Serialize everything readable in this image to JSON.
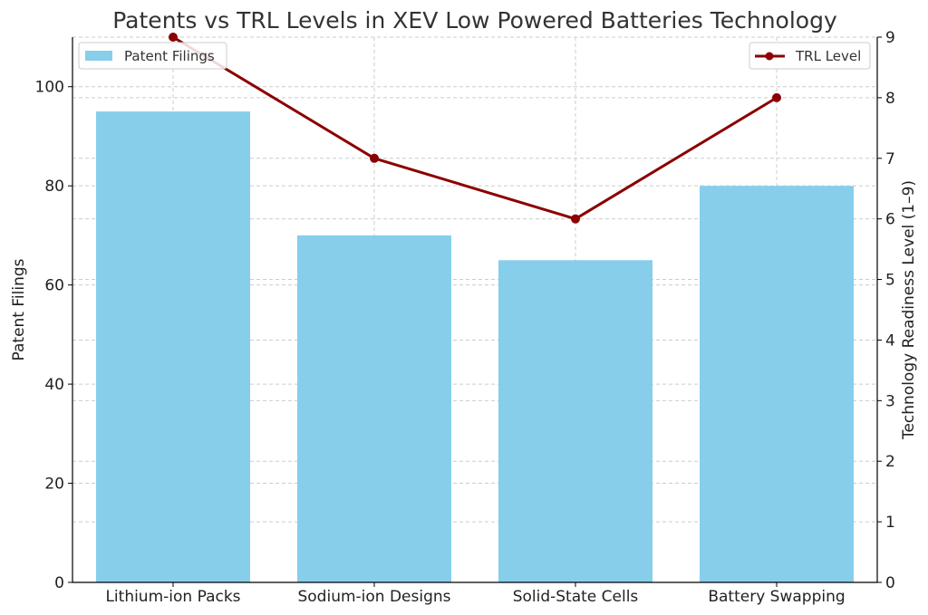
{
  "chart_data": {
    "type": "bar",
    "title": "Patents vs TRL Levels in XEV Low Powered Batteries Technology",
    "categories": [
      "Lithium-ion Packs",
      "Sodium-ion Designs",
      "Solid-State Cells",
      "Battery Swapping"
    ],
    "series": [
      {
        "name": "Patent Filings",
        "type": "bar",
        "axis": "left",
        "values": [
          95,
          70,
          65,
          80
        ],
        "color": "#87ceeb"
      },
      {
        "name": "TRL Level",
        "type": "line",
        "axis": "right",
        "values": [
          9,
          7,
          6,
          8
        ],
        "color": "#8b0000"
      }
    ],
    "y_left": {
      "label": "Patent Filings",
      "ylim": [
        0,
        110
      ],
      "ticks": [
        "0",
        "20",
        "40",
        "60",
        "80",
        "100"
      ]
    },
    "y_right": {
      "label": "Technology Readiness Level (1–9)",
      "ylim": [
        0,
        9
      ],
      "ticks": [
        "0",
        "1",
        "2",
        "3",
        "4",
        "5",
        "6",
        "7",
        "8",
        "9"
      ]
    },
    "grid": true,
    "legend_left_placement": "top-left",
    "legend_right_placement": "top-right"
  }
}
